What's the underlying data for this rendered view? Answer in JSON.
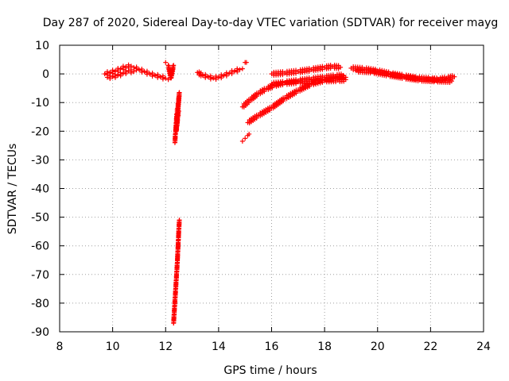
{
  "chart_data": {
    "type": "scatter",
    "title": "Day 287 of 2020, Sidereal Day-to-day VTEC variation (SDTVAR) for receiver mayg",
    "xlabel": "GPS time / hours",
    "ylabel": "SDTVAR / TECUs",
    "xlim": [
      8,
      24
    ],
    "ylim": [
      -90,
      10
    ],
    "xticks": [
      "8",
      "10",
      "12",
      "14",
      "16",
      "18",
      "20",
      "22",
      "24"
    ],
    "yticks": [
      "10",
      "0",
      "-10",
      "-20",
      "-30",
      "-40",
      "-50",
      "-60",
      "-70",
      "-80",
      "-90"
    ],
    "grid": true,
    "marker": "plus",
    "color": "#ff0000",
    "series": [
      {
        "name": "band-morning",
        "x": [
          9.7,
          9.9,
          10.1,
          10.3,
          10.5,
          10.7,
          10.8,
          11.0,
          11.2,
          11.4,
          11.6,
          11.8,
          12.0,
          12.1
        ],
        "y": [
          0.0,
          0.5,
          1.0,
          1.8,
          2.5,
          2.7,
          2.2,
          1.5,
          0.8,
          0.0,
          -0.5,
          -1.0,
          -1.5,
          -2.0
        ]
      },
      {
        "name": "band-morning-lower",
        "x": [
          9.8,
          10.0,
          10.2,
          10.4,
          10.6,
          10.8
        ],
        "y": [
          -1.2,
          -1.0,
          -0.5,
          0.2,
          1.0,
          0.8
        ]
      },
      {
        "name": "spike-1215",
        "x": [
          12.0,
          12.1,
          12.2,
          12.3
        ],
        "y": [
          4.0,
          3.0,
          -1.5,
          3.0
        ]
      },
      {
        "name": "drop-1230",
        "x": [
          12.35,
          12.37,
          12.4,
          12.42,
          12.45,
          12.48,
          12.5,
          12.52,
          12.4,
          12.43,
          12.46,
          12.5
        ],
        "y": [
          -24.0,
          -21.0,
          -17.0,
          -14.0,
          -12.0,
          -10.0,
          -8.0,
          -6.5,
          -20.0,
          -18.0,
          -15.0,
          -13.0
        ]
      },
      {
        "name": "drop-deep",
        "x": [
          12.3,
          12.32,
          12.34,
          12.36,
          12.38,
          12.4,
          12.42,
          12.44,
          12.46,
          12.48,
          12.5,
          12.52
        ],
        "y": [
          -87.0,
          -84.0,
          -81.0,
          -78.0,
          -75.0,
          -72.0,
          -69.0,
          -66.0,
          -62.0,
          -58.0,
          -54.0,
          -51.0
        ]
      },
      {
        "name": "band-13-15",
        "x": [
          13.2,
          13.4,
          13.6,
          13.8,
          14.0,
          14.2,
          14.4,
          14.6,
          14.8,
          14.9
        ],
        "y": [
          0.5,
          -0.5,
          -1.0,
          -1.5,
          -1.2,
          -0.5,
          0.2,
          1.0,
          1.5,
          1.8
        ]
      },
      {
        "name": "point-1505",
        "x": [
          15.0,
          15.05
        ],
        "y": [
          4.0,
          4.0
        ]
      },
      {
        "name": "arc-upper",
        "x": [
          14.9,
          15.2,
          15.5,
          15.8,
          16.1,
          16.5,
          17.0,
          17.5,
          18.0,
          18.4,
          18.7
        ],
        "y": [
          -11.5,
          -9.0,
          -6.8,
          -5.2,
          -4.0,
          -3.0,
          -2.4,
          -1.8,
          -1.2,
          -0.8,
          -0.5
        ]
      },
      {
        "name": "arc-lower",
        "x": [
          15.1,
          15.5,
          16.0,
          16.5,
          17.0,
          17.5,
          18.0,
          18.5,
          18.8
        ],
        "y": [
          -17.0,
          -14.5,
          -11.8,
          -8.5,
          -5.8,
          -3.5,
          -2.2,
          -1.5,
          -1.2
        ]
      },
      {
        "name": "cluster-1500",
        "x": [
          14.9,
          15.0,
          15.1,
          15.15
        ],
        "y": [
          -23.5,
          -22.5,
          -21.5,
          -21.0
        ]
      },
      {
        "name": "band-16-18-top",
        "x": [
          16.0,
          16.5,
          17.0,
          17.5,
          18.0,
          18.3,
          18.6
        ],
        "y": [
          0.0,
          0.3,
          0.8,
          1.5,
          2.2,
          2.6,
          2.3
        ]
      },
      {
        "name": "band-16-18-mid",
        "x": [
          16.0,
          16.5,
          17.0,
          17.5,
          18.0,
          18.5,
          18.8
        ],
        "y": [
          -3.5,
          -3.2,
          -2.8,
          -2.5,
          -2.3,
          -2.2,
          -2.0
        ]
      },
      {
        "name": "band-evening",
        "x": [
          19.0,
          19.5,
          20.0,
          20.5,
          21.0,
          21.5,
          22.0,
          22.3,
          22.6,
          22.9
        ],
        "y": [
          2.0,
          1.7,
          1.0,
          0.0,
          -0.8,
          -1.5,
          -1.8,
          -2.0,
          -1.5,
          -1.0
        ]
      },
      {
        "name": "band-evening-lower",
        "x": [
          19.2,
          19.8,
          20.4,
          21.0,
          21.6,
          22.2,
          22.8
        ],
        "y": [
          1.2,
          0.8,
          -0.3,
          -1.2,
          -2.0,
          -2.3,
          -2.5
        ]
      }
    ]
  }
}
